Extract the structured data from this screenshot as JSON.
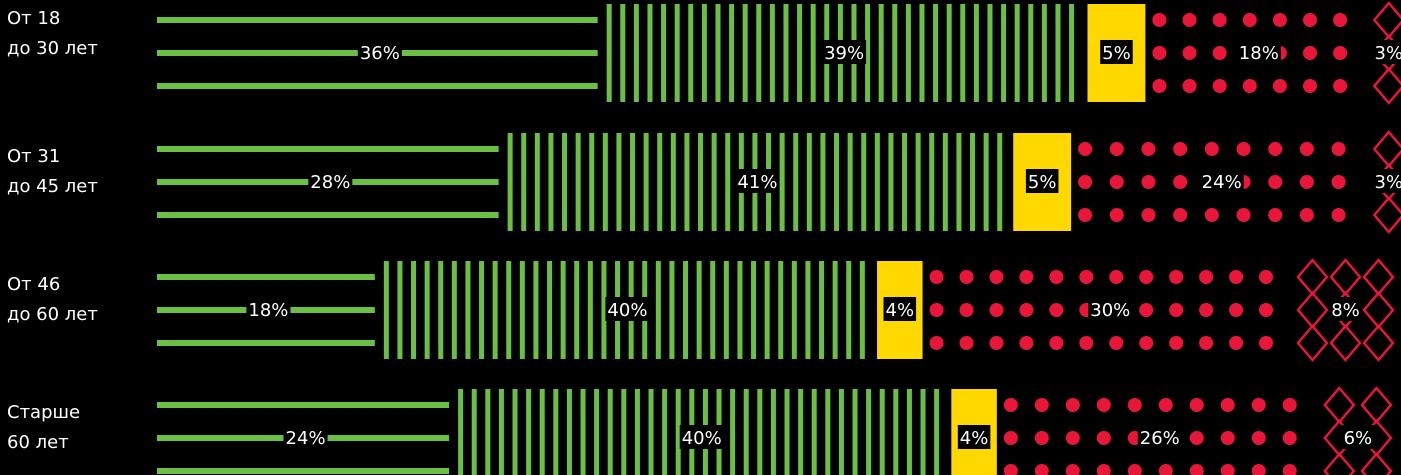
{
  "chart_data": {
    "type": "bar",
    "stacked": true,
    "orientation": "horizontal",
    "categories": [
      [
        "От 18",
        "до 30 лет"
      ],
      [
        "От 31",
        "до 45 лет"
      ],
      [
        "От 46",
        "до 60 лет"
      ],
      [
        "Старше",
        "60 лет"
      ]
    ],
    "series": [
      {
        "color": "#6bbf45",
        "pattern": "horizontal-lines",
        "values": [
          36,
          28,
          18,
          24
        ],
        "labels": [
          "36%",
          "28%",
          "18%",
          "24%"
        ]
      },
      {
        "color": "#6bbf45",
        "pattern": "vertical-lines",
        "values": [
          39,
          41,
          40,
          40
        ],
        "labels": [
          "39%",
          "41%",
          "40%",
          "40%"
        ]
      },
      {
        "color": "#ffd800",
        "pattern": "solid",
        "values": [
          5,
          5,
          4,
          4
        ],
        "labels": [
          "5%",
          "5%",
          "4%",
          "4%"
        ]
      },
      {
        "color": "#e8173a",
        "pattern": "dots",
        "values": [
          18,
          24,
          30,
          26
        ],
        "labels": [
          "18%",
          "24%",
          "30%",
          "26%"
        ]
      },
      {
        "color": "#e8173a",
        "pattern": "diamonds",
        "values": [
          3,
          3,
          8,
          6
        ],
        "labels": [
          "3%",
          "3%",
          "8%",
          "6%"
        ]
      }
    ]
  }
}
